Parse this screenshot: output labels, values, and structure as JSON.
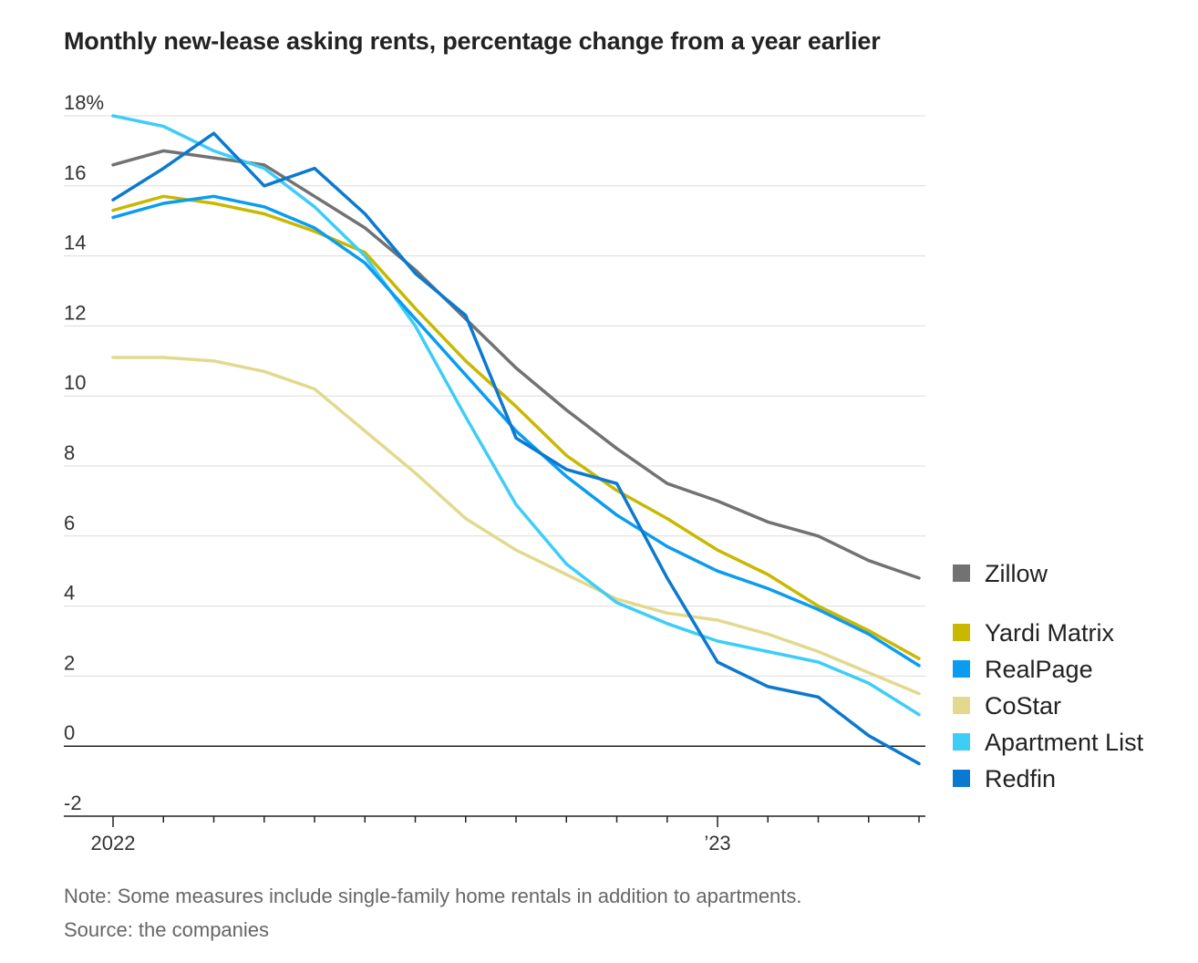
{
  "title": "Monthly new-lease asking rents, percentage change from a year earlier",
  "note": "Note: Some measures include single-family home rentals in addition to apartments.",
  "source": "Source: the companies",
  "chart_data": {
    "type": "line",
    "title": "Monthly new-lease asking rents, percentage change from a year earlier",
    "xlabel": "",
    "ylabel": "",
    "ylim": [
      -2,
      18
    ],
    "yticks": [
      -2,
      0,
      2,
      4,
      6,
      8,
      10,
      12,
      14,
      16,
      18
    ],
    "ytick_labels": [
      "-2",
      "0",
      "2",
      "4",
      "6",
      "8",
      "10",
      "12",
      "14",
      "16",
      "18%"
    ],
    "x": [
      "2022-01",
      "2022-02",
      "2022-03",
      "2022-04",
      "2022-05",
      "2022-06",
      "2022-07",
      "2022-08",
      "2022-09",
      "2022-10",
      "2022-11",
      "2022-12",
      "2023-01",
      "2023-02",
      "2023-03",
      "2023-04",
      "2023-05"
    ],
    "xtick_labels": [
      {
        "x": "2022-01",
        "label": "2022"
      },
      {
        "x": "2023-01",
        "label": "’23"
      }
    ],
    "grid": true,
    "legend_position": "right",
    "series": [
      {
        "name": "Zillow",
        "color": "#727272",
        "values": [
          16.6,
          17.0,
          16.8,
          16.6,
          15.7,
          14.8,
          13.6,
          12.2,
          10.8,
          9.6,
          8.5,
          7.5,
          7.0,
          6.4,
          6.0,
          5.3,
          4.8
        ]
      },
      {
        "name": "Yardi Matrix",
        "color": "#c9b800",
        "values": [
          15.3,
          15.7,
          15.5,
          15.2,
          14.7,
          14.1,
          12.5,
          11.0,
          9.7,
          8.3,
          7.3,
          6.5,
          5.6,
          4.9,
          4.0,
          3.3,
          2.5
        ]
      },
      {
        "name": "RealPage",
        "color": "#0a9cf0",
        "values": [
          15.1,
          15.5,
          15.7,
          15.4,
          14.8,
          13.8,
          12.2,
          10.6,
          9.0,
          7.7,
          6.6,
          5.7,
          5.0,
          4.5,
          3.9,
          3.2,
          2.3
        ]
      },
      {
        "name": "CoStar",
        "color": "#e3d98e",
        "values": [
          11.1,
          11.1,
          11.0,
          10.7,
          10.2,
          9.0,
          7.8,
          6.5,
          5.6,
          4.9,
          4.2,
          3.8,
          3.6,
          3.2,
          2.7,
          2.1,
          1.5
        ]
      },
      {
        "name": "Apartment List",
        "color": "#3ecdf7",
        "values": [
          18.0,
          17.7,
          17.0,
          16.5,
          15.4,
          14.0,
          12.0,
          9.4,
          6.9,
          5.2,
          4.1,
          3.5,
          3.0,
          2.7,
          2.4,
          1.8,
          0.9
        ]
      },
      {
        "name": "Redfin",
        "color": "#0b79d0",
        "values": [
          15.6,
          16.5,
          17.5,
          16.0,
          16.5,
          15.2,
          13.5,
          12.3,
          8.8,
          7.9,
          7.5,
          4.8,
          2.4,
          1.7,
          1.4,
          0.3,
          -0.5
        ]
      }
    ]
  }
}
